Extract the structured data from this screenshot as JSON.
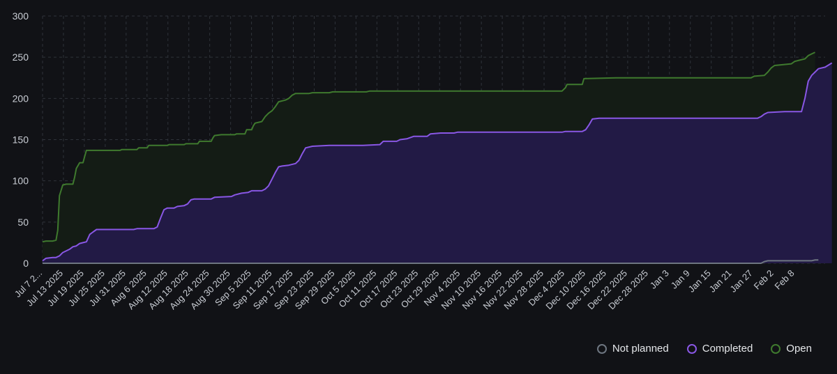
{
  "colors": {
    "not_planned": "#6e7681",
    "completed": "#8957e5",
    "open": "#3f7a2e",
    "completed_fill": "#221a45",
    "open_fill": "#141c15"
  },
  "legend": {
    "not_planned": "Not planned",
    "completed": "Completed",
    "open": "Open"
  },
  "chart_data": {
    "type": "area",
    "y_ticks": [
      "0",
      "50",
      "100",
      "150",
      "200",
      "250",
      "300"
    ],
    "ylim": [
      0,
      300
    ],
    "x_tick_labels": [
      "Jul 7 2...",
      "Jul 13 2025",
      "Jul 19 2025",
      "Jul 25 2025",
      "Jul 31 2025",
      "Aug 6 2025",
      "Aug 12 2025",
      "Aug 18 2025",
      "Aug 24 2025",
      "Aug 30 2025",
      "Sep 5 2025",
      "Sep 11 2025",
      "Sep 17 2025",
      "Sep 23 2025",
      "Sep 29 2025",
      "Oct 5 2025",
      "Oct 11 2025",
      "Oct 17 2025",
      "Oct 23 2025",
      "Oct 29 2025",
      "Nov 4 2025",
      "Nov 10 2025",
      "Nov 16 2025",
      "Nov 22 2025",
      "Nov 28 2025",
      "Dec 4 2025",
      "Dec 10 2025",
      "Dec 16 2025",
      "Dec 22 2025",
      "Dec 28 2025",
      "Jan 3",
      "Jan 9",
      "Jan 15",
      "Jan 21",
      "Jan 27",
      "Feb 2",
      "Feb 8"
    ],
    "x_range_days": [
      0,
      222
    ],
    "grid": true,
    "legend_position": "bottom-right",
    "series": [
      {
        "name": "Open",
        "points": [
          [
            0,
            26
          ],
          [
            1,
            27
          ],
          [
            3,
            27
          ],
          [
            4,
            28
          ],
          [
            4.5,
            40
          ],
          [
            5,
            82
          ],
          [
            6,
            95
          ],
          [
            7,
            96
          ],
          [
            9,
            96
          ],
          [
            9.5,
            104
          ],
          [
            10,
            115
          ],
          [
            11,
            122
          ],
          [
            12,
            122
          ],
          [
            12.5,
            130
          ],
          [
            13,
            137
          ],
          [
            17,
            137
          ],
          [
            20,
            137
          ],
          [
            23,
            137
          ],
          [
            23.5,
            138
          ],
          [
            28,
            138
          ],
          [
            28.5,
            140
          ],
          [
            31,
            140
          ],
          [
            31.5,
            143
          ],
          [
            37,
            143
          ],
          [
            37.5,
            144
          ],
          [
            42,
            144
          ],
          [
            42.5,
            145
          ],
          [
            46,
            145
          ],
          [
            46.5,
            148
          ],
          [
            50,
            148
          ],
          [
            50.5,
            152
          ],
          [
            51,
            155
          ],
          [
            53,
            156
          ],
          [
            57,
            156
          ],
          [
            57.5,
            157
          ],
          [
            60,
            157
          ],
          [
            60.5,
            162
          ],
          [
            62,
            162
          ],
          [
            62.5,
            167
          ],
          [
            63,
            170
          ],
          [
            65,
            172
          ],
          [
            66,
            178
          ],
          [
            67,
            182
          ],
          [
            68,
            185
          ],
          [
            69,
            190
          ],
          [
            70,
            196
          ],
          [
            72,
            198
          ],
          [
            73,
            200
          ],
          [
            74,
            204
          ],
          [
            75,
            206
          ],
          [
            79,
            206
          ],
          [
            80,
            207
          ],
          [
            85,
            207
          ],
          [
            86,
            208
          ],
          [
            96,
            208
          ],
          [
            97,
            209
          ],
          [
            110,
            209
          ],
          [
            140,
            209
          ],
          [
            154,
            209
          ],
          [
            155,
            213
          ],
          [
            155.5,
            217
          ],
          [
            160,
            217
          ],
          [
            160.5,
            224
          ],
          [
            170,
            225
          ],
          [
            210,
            225
          ],
          [
            211,
            227
          ],
          [
            214,
            228
          ],
          [
            215,
            232
          ],
          [
            216,
            237
          ],
          [
            217,
            240
          ],
          [
            222,
            242
          ],
          [
            223,
            245
          ],
          [
            224,
            246
          ],
          [
            226,
            248
          ],
          [
            227,
            252
          ],
          [
            228,
            254
          ],
          [
            229,
            256
          ]
        ]
      },
      {
        "name": "Completed",
        "points": [
          [
            0,
            3
          ],
          [
            1,
            6
          ],
          [
            3,
            7
          ],
          [
            4,
            7
          ],
          [
            5,
            9
          ],
          [
            6,
            13
          ],
          [
            8,
            17
          ],
          [
            9,
            20
          ],
          [
            10,
            21
          ],
          [
            11,
            24
          ],
          [
            12,
            25
          ],
          [
            13,
            26
          ],
          [
            14,
            35
          ],
          [
            15,
            38
          ],
          [
            16,
            41
          ],
          [
            20,
            41
          ],
          [
            27,
            41
          ],
          [
            28,
            42
          ],
          [
            33,
            42
          ],
          [
            34,
            44
          ],
          [
            35,
            55
          ],
          [
            36,
            65
          ],
          [
            37,
            67
          ],
          [
            39,
            67
          ],
          [
            40,
            69
          ],
          [
            42,
            70
          ],
          [
            43,
            72
          ],
          [
            44,
            77
          ],
          [
            45,
            78
          ],
          [
            50,
            78
          ],
          [
            51,
            80
          ],
          [
            56,
            81
          ],
          [
            57,
            83
          ],
          [
            59,
            85
          ],
          [
            61,
            86
          ],
          [
            62,
            88
          ],
          [
            65,
            88
          ],
          [
            66,
            90
          ],
          [
            67,
            94
          ],
          [
            68,
            102
          ],
          [
            69,
            110
          ],
          [
            70,
            117
          ],
          [
            71,
            118
          ],
          [
            73,
            119
          ],
          [
            75,
            121
          ],
          [
            76,
            125
          ],
          [
            77,
            133
          ],
          [
            78,
            140
          ],
          [
            80,
            142
          ],
          [
            85,
            143
          ],
          [
            95,
            143
          ],
          [
            100,
            144
          ],
          [
            101,
            148
          ],
          [
            105,
            148
          ],
          [
            106,
            150
          ],
          [
            108,
            151
          ],
          [
            110,
            154
          ],
          [
            114,
            154
          ],
          [
            115,
            157
          ],
          [
            118,
            158
          ],
          [
            122,
            158
          ],
          [
            123,
            159
          ],
          [
            140,
            159
          ],
          [
            154,
            159
          ],
          [
            155,
            160
          ],
          [
            160,
            160
          ],
          [
            161,
            162
          ],
          [
            162,
            168
          ],
          [
            163,
            175
          ],
          [
            165,
            176
          ],
          [
            212,
            176
          ],
          [
            213,
            178
          ],
          [
            214,
            181
          ],
          [
            215,
            183
          ],
          [
            220,
            184
          ],
          [
            225,
            184
          ],
          [
            226,
            200
          ],
          [
            227,
            221
          ],
          [
            228,
            228
          ],
          [
            229,
            232
          ],
          [
            230,
            236
          ],
          [
            232,
            238
          ],
          [
            234,
            243
          ]
        ]
      },
      {
        "name": "Not planned",
        "points": [
          [
            0,
            0
          ],
          [
            213,
            0
          ],
          [
            214,
            2
          ],
          [
            215,
            3
          ],
          [
            220,
            3
          ],
          [
            228,
            3
          ],
          [
            229,
            4
          ],
          [
            230,
            4
          ]
        ]
      }
    ]
  }
}
